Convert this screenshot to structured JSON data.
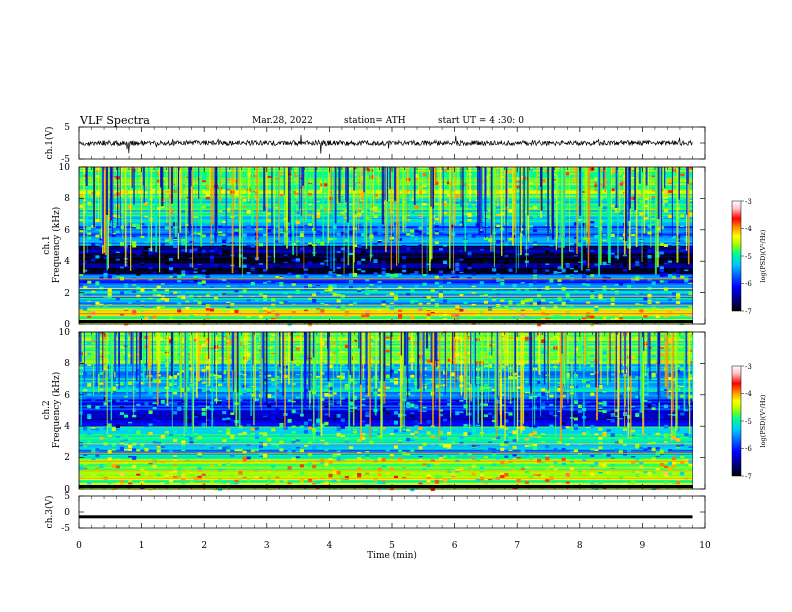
{
  "header": {
    "title": "VLF  Spectra",
    "date": "Mar.28, 2022",
    "station": "station= ATH",
    "start_ut": "start  UT  =   4  :30: 0"
  },
  "colors": {
    "spectrogram_scale": [
      "#000000",
      "#00007a",
      "#0000ff",
      "#0060ff",
      "#00c8ff",
      "#00ff90",
      "#9cff00",
      "#ffff00",
      "#ff9000",
      "#ff0000",
      "#ffc0c0",
      "#ffffff"
    ],
    "waveform": "#000000"
  },
  "chart_data": [
    {
      "type": "line",
      "name": "ch1-waveform",
      "ylabel": "ch.1(V)",
      "ylim": [
        -5,
        5
      ],
      "y_ticks": [
        "5",
        "-5"
      ],
      "xlim": [
        0,
        10
      ],
      "baseline": 0,
      "amplitude": "noisy ±1 V with sparse spikes"
    },
    {
      "type": "heatmap",
      "name": "ch1-spectrogram",
      "ylabel": "ch.1\nFrequency (kHz)",
      "ylabel_lines": [
        "ch.1",
        "Frequency (kHz)"
      ],
      "ylim": [
        0,
        10
      ],
      "y_ticks": [
        "0",
        "2",
        "4",
        "6",
        "8",
        "10"
      ],
      "xlim": [
        0,
        9.8
      ],
      "colorbar": {
        "label": "log(PSD)(V²/Hz)",
        "range": [
          -7,
          -3
        ],
        "ticks": [
          "-3",
          "-4",
          "-5",
          "-6",
          "-7"
        ]
      },
      "bands_log_psd": [
        {
          "from_khz": 0.0,
          "to_khz": 0.5,
          "level": -5.0
        },
        {
          "from_khz": 0.5,
          "to_khz": 1.0,
          "level": -4.6
        },
        {
          "from_khz": 1.0,
          "to_khz": 2.4,
          "level": -5.6
        },
        {
          "from_khz": 2.4,
          "to_khz": 3.2,
          "level": -6.0
        },
        {
          "from_khz": 3.2,
          "to_khz": 5.0,
          "level": -6.8
        },
        {
          "from_khz": 5.0,
          "to_khz": 6.5,
          "level": -5.9
        },
        {
          "from_khz": 6.5,
          "to_khz": 8.0,
          "level": -5.3
        },
        {
          "from_khz": 8.0,
          "to_khz": 10.0,
          "level": -4.9
        }
      ]
    },
    {
      "type": "heatmap",
      "name": "ch2-spectrogram",
      "ylabel": "ch.2\nFrequency (kHz)",
      "ylabel_lines": [
        "ch.2",
        "Frequency (kHz)"
      ],
      "ylim": [
        0,
        10
      ],
      "y_ticks": [
        "0",
        "2",
        "4",
        "6",
        "8",
        "10"
      ],
      "xlim": [
        0,
        9.8
      ],
      "colorbar": {
        "label": "log(PSD)(V²/Hz)",
        "range": [
          -7,
          -3
        ],
        "ticks": [
          "-3",
          "-4",
          "-5",
          "-6",
          "-7"
        ]
      },
      "bands_log_psd": [
        {
          "from_khz": 0.0,
          "to_khz": 0.6,
          "level": -5.0
        },
        {
          "from_khz": 0.6,
          "to_khz": 1.0,
          "level": -4.6
        },
        {
          "from_khz": 1.0,
          "to_khz": 2.0,
          "level": -5.1
        },
        {
          "from_khz": 2.0,
          "to_khz": 3.0,
          "level": -5.6
        },
        {
          "from_khz": 3.0,
          "to_khz": 4.0,
          "level": -5.4
        },
        {
          "from_khz": 4.0,
          "to_khz": 5.8,
          "level": -6.2
        },
        {
          "from_khz": 5.8,
          "to_khz": 8.0,
          "level": -5.6
        },
        {
          "from_khz": 8.0,
          "to_khz": 10.0,
          "level": -5.0
        }
      ]
    },
    {
      "type": "line",
      "name": "ch3-waveform",
      "ylabel": "ch.3(V)",
      "ylim": [
        -5,
        5
      ],
      "y_ticks": [
        "5",
        "0",
        "-5"
      ],
      "xlim": [
        0,
        10
      ],
      "constant_value": -1.5
    }
  ],
  "x_axis": {
    "label": "Time  (min)",
    "ticks": [
      "0",
      "1",
      "2",
      "3",
      "4",
      "5",
      "6",
      "7",
      "8",
      "9",
      "10"
    ],
    "range": [
      0,
      10
    ]
  }
}
